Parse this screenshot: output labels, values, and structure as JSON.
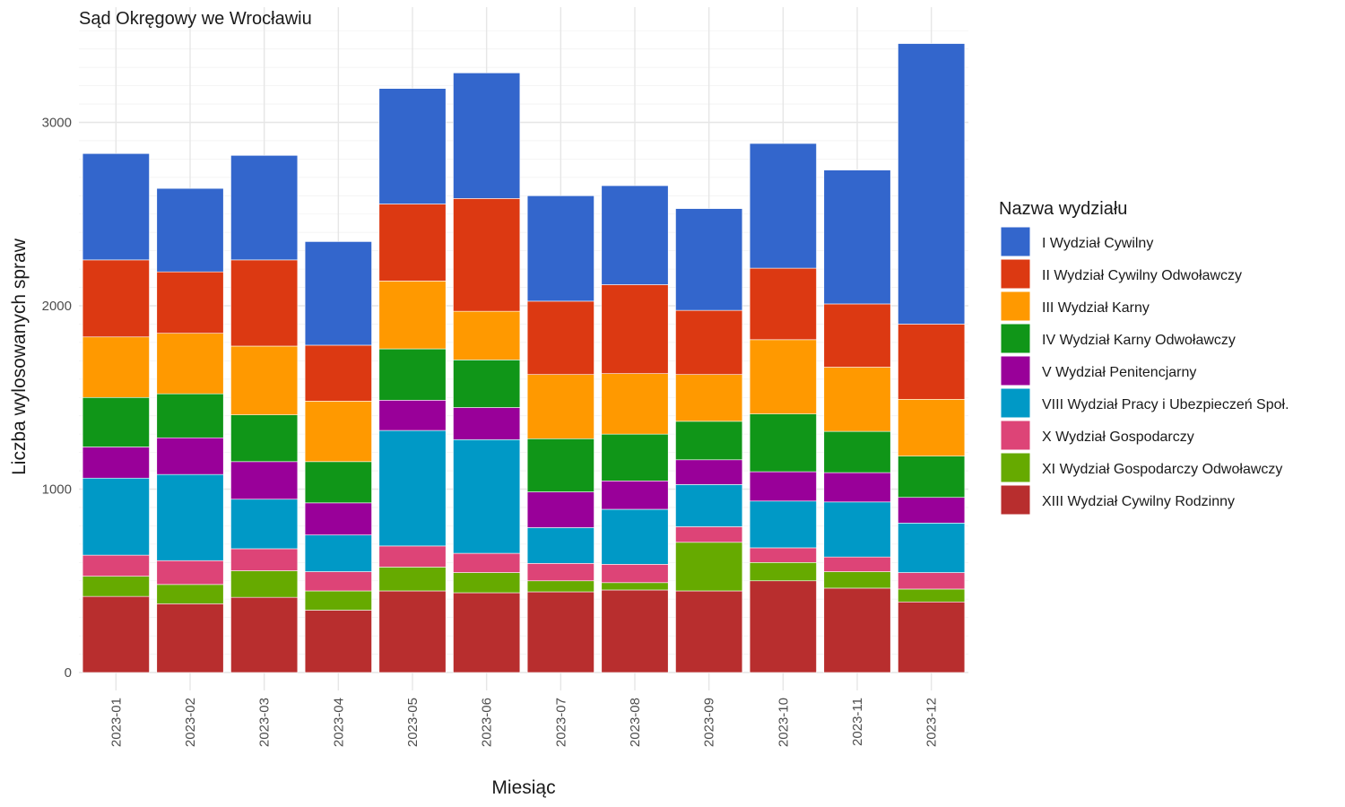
{
  "chart_data": {
    "type": "bar",
    "stacked": true,
    "title": "Sąd Okręgowy we Wrocławiu",
    "xlabel": "Miesiąc",
    "ylabel": "Liczba wylosowanych spraw",
    "ylim": [
      0,
      3500
    ],
    "yticks": [
      0,
      1000,
      2000,
      3000
    ],
    "grid": true,
    "legend_title": "Nazwa wydziału",
    "legend_position": "right",
    "categories": [
      "2023-01",
      "2023-02",
      "2023-03",
      "2023-04",
      "2023-05",
      "2023-06",
      "2023-07",
      "2023-08",
      "2023-09",
      "2023-10",
      "2023-11",
      "2023-12"
    ],
    "series": [
      {
        "name": "XIII Wydział Cywilny Rodzinny",
        "color": "#B82E2E",
        "values": [
          415,
          375,
          410,
          340,
          445,
          435,
          440,
          450,
          445,
          500,
          460,
          385
        ]
      },
      {
        "name": "XI Wydział Gospodarczy Odwoławczy",
        "color": "#66AA00",
        "values": [
          110,
          105,
          145,
          105,
          130,
          110,
          60,
          40,
          265,
          100,
          90,
          70
        ]
      },
      {
        "name": "X Wydział Gospodarczy",
        "color": "#DD4477",
        "values": [
          115,
          130,
          120,
          105,
          115,
          105,
          95,
          100,
          85,
          80,
          80,
          90
        ]
      },
      {
        "name": "VIII Wydział Pracy i Ubezpieczeń Społ.",
        "color": "#0099C6",
        "values": [
          420,
          470,
          270,
          200,
          630,
          620,
          195,
          300,
          230,
          255,
          300,
          270
        ]
      },
      {
        "name": "V Wydział Penitencjarny",
        "color": "#990099",
        "values": [
          170,
          200,
          205,
          175,
          165,
          175,
          195,
          155,
          135,
          160,
          160,
          140
        ]
      },
      {
        "name": "IV Wydział Karny Odwoławczy",
        "color": "#109618",
        "values": [
          270,
          240,
          255,
          225,
          280,
          260,
          290,
          255,
          210,
          315,
          225,
          225
        ]
      },
      {
        "name": "III Wydział Karny",
        "color": "#FF9900",
        "values": [
          330,
          330,
          375,
          330,
          370,
          265,
          350,
          330,
          255,
          405,
          350,
          310
        ]
      },
      {
        "name": "II Wydział Cywilny Odwoławczy",
        "color": "#DC3912",
        "values": [
          420,
          335,
          470,
          305,
          420,
          615,
          400,
          485,
          350,
          390,
          345,
          410
        ]
      },
      {
        "name": "I Wydział Cywilny",
        "color": "#3366CC",
        "values": [
          580,
          455,
          570,
          565,
          630,
          685,
          575,
          540,
          555,
          680,
          730,
          1530
        ]
      }
    ],
    "legend_order": [
      "I Wydział Cywilny",
      "II Wydział Cywilny Odwoławczy",
      "III Wydział Karny",
      "IV Wydział Karny Odwoławczy",
      "V Wydział Penitencjarny",
      "VIII Wydział Pracy i Ubezpieczeń Społ.",
      "X Wydział Gospodarczy",
      "XI Wydział Gospodarczy Odwoławczy",
      "XIII Wydział Cywilny Rodzinny"
    ]
  }
}
